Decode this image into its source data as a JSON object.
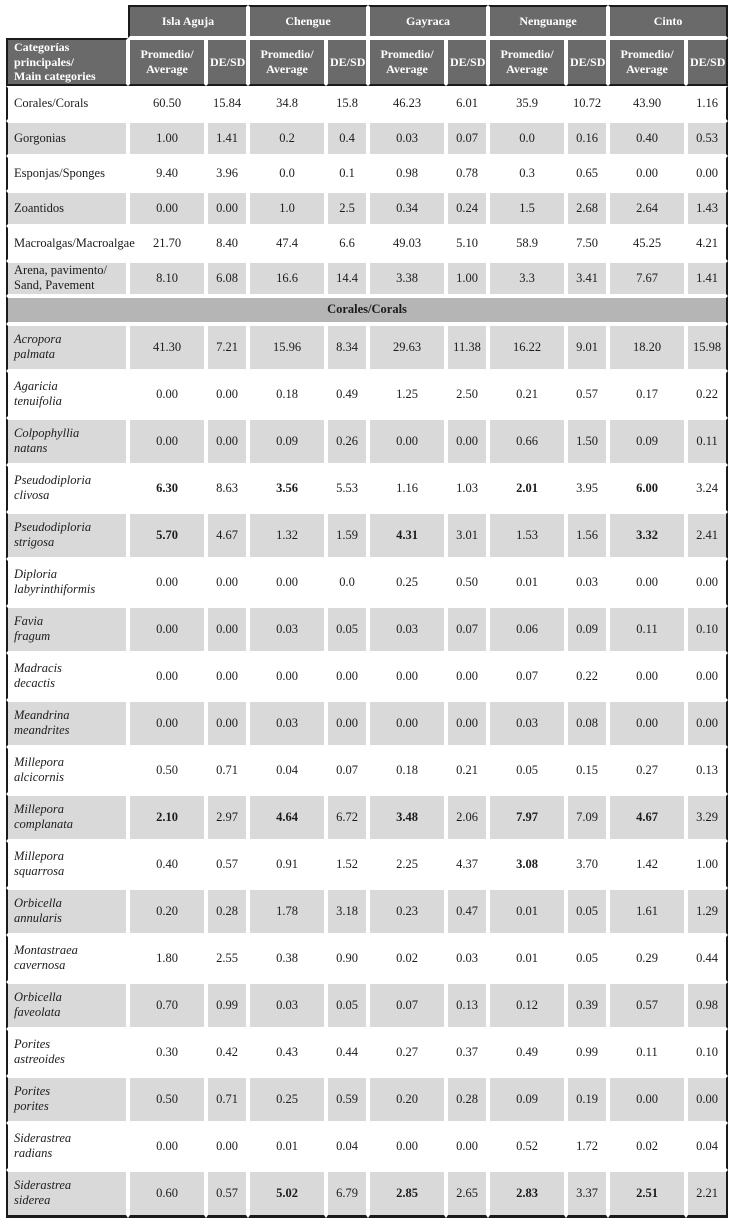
{
  "header": {
    "col1_line1": "Categorías principales/",
    "col1_line2": "Main categories",
    "avg_line1": "Promedio/",
    "avg_line2": "Average",
    "sd_label": "DE/SD",
    "locations": [
      "Isla Aguja",
      "Chengue",
      "Gayraca",
      "Nenguange",
      "Cinto"
    ]
  },
  "section_title": "Corales/Corals",
  "main_rows": [
    {
      "label_lines": [
        "Corales/Corals"
      ],
      "values": [
        "60.50",
        "15.84",
        "34.8",
        "15.8",
        "46.23",
        "6.01",
        "35.9",
        "10.72",
        "43.90",
        "1.16"
      ],
      "bold": []
    },
    {
      "label_lines": [
        "Gorgonias"
      ],
      "values": [
        "1.00",
        "1.41",
        "0.2",
        "0.4",
        "0.03",
        "0.07",
        "0.0",
        "0.16",
        "0.40",
        "0.53"
      ],
      "bold": []
    },
    {
      "label_lines": [
        "Esponjas/Sponges"
      ],
      "values": [
        "9.40",
        "3.96",
        "0.0",
        "0.1",
        "0.98",
        "0.78",
        "0.3",
        "0.65",
        "0.00",
        "0.00"
      ],
      "bold": []
    },
    {
      "label_lines": [
        "Zoantidos"
      ],
      "values": [
        "0.00",
        "0.00",
        "1.0",
        "2.5",
        "0.34",
        "0.24",
        "1.5",
        "2.68",
        "2.64",
        "1.43"
      ],
      "bold": []
    },
    {
      "label_lines": [
        "Macroalgas/Macroalgae"
      ],
      "values": [
        "21.70",
        "8.40",
        "47.4",
        "6.6",
        "49.03",
        "5.10",
        "58.9",
        "7.50",
        "45.25",
        "4.21"
      ],
      "bold": []
    },
    {
      "label_lines": [
        "Arena, pavimento/",
        "Sand, Pavement"
      ],
      "values": [
        "8.10",
        "6.08",
        "16.6",
        "14.4",
        "3.38",
        "1.00",
        "3.3",
        "3.41",
        "7.67",
        "1.41"
      ],
      "bold": []
    }
  ],
  "coral_rows": [
    {
      "label_lines": [
        "Acropora",
        "palmata"
      ],
      "values": [
        "41.30",
        "7.21",
        "15.96",
        "8.34",
        "29.63",
        "11.38",
        "16.22",
        "9.01",
        "18.20",
        "15.98"
      ],
      "bold": []
    },
    {
      "label_lines": [
        "Agaricia",
        "tenuifolia"
      ],
      "values": [
        "0.00",
        "0.00",
        "0.18",
        "0.49",
        "1.25",
        "2.50",
        "0.21",
        "0.57",
        "0.17",
        "0.22"
      ],
      "bold": []
    },
    {
      "label_lines": [
        "Colpophyllia",
        "natans"
      ],
      "values": [
        "0.00",
        "0.00",
        "0.09",
        "0.26",
        "0.00",
        "0.00",
        "0.66",
        "1.50",
        "0.09",
        "0.11"
      ],
      "bold": []
    },
    {
      "label_lines": [
        "Pseudodiploria",
        "clivosa"
      ],
      "values": [
        "6.30",
        "8.63",
        "3.56",
        "5.53",
        "1.16",
        "1.03",
        "2.01",
        "3.95",
        "6.00",
        "3.24"
      ],
      "bold": [
        0,
        2,
        6,
        8
      ]
    },
    {
      "label_lines": [
        "Pseudodiploria",
        "strigosa"
      ],
      "values": [
        "5.70",
        "4.67",
        "1.32",
        "1.59",
        "4.31",
        "3.01",
        "1.53",
        "1.56",
        "3.32",
        "2.41"
      ],
      "bold": [
        0,
        4,
        8
      ]
    },
    {
      "label_lines": [
        "Diploria",
        "labyrinthiformis"
      ],
      "values": [
        "0.00",
        "0.00",
        "0.00",
        "0.0",
        "0.25",
        "0.50",
        "0.01",
        "0.03",
        "0.00",
        "0.00"
      ],
      "bold": []
    },
    {
      "label_lines": [
        "Favia",
        "fragum"
      ],
      "values": [
        "0.00",
        "0.00",
        "0.03",
        "0.05",
        "0.03",
        "0.07",
        "0.06",
        "0.09",
        "0.11",
        "0.10"
      ],
      "bold": []
    },
    {
      "label_lines": [
        "Madracis",
        "decactis"
      ],
      "values": [
        "0.00",
        "0.00",
        "0.00",
        "0.00",
        "0.00",
        "0.00",
        "0.07",
        "0.22",
        "0.00",
        "0.00"
      ],
      "bold": []
    },
    {
      "label_lines": [
        "Meandrina",
        "meandrites"
      ],
      "values": [
        "0.00",
        "0.00",
        "0.03",
        "0.00",
        "0.00",
        "0.00",
        "0.03",
        "0.08",
        "0.00",
        "0.00"
      ],
      "bold": []
    },
    {
      "label_lines": [
        "Millepora",
        "alcicornis"
      ],
      "values": [
        "0.50",
        "0.71",
        "0.04",
        "0.07",
        "0.18",
        "0.21",
        "0.05",
        "0.15",
        "0.27",
        "0.13"
      ],
      "bold": []
    },
    {
      "label_lines": [
        "Millepora",
        "complanata"
      ],
      "values": [
        "2.10",
        "2.97",
        "4.64",
        "6.72",
        "3.48",
        "2.06",
        "7.97",
        "7.09",
        "4.67",
        "3.29"
      ],
      "bold": [
        0,
        2,
        4,
        6,
        8
      ]
    },
    {
      "label_lines": [
        "Millepora",
        "squarrosa"
      ],
      "values": [
        "0.40",
        "0.57",
        "0.91",
        "1.52",
        "2.25",
        "4.37",
        "3.08",
        "3.70",
        "1.42",
        "1.00"
      ],
      "bold": [
        6
      ]
    },
    {
      "label_lines": [
        "Orbicella",
        "annularis"
      ],
      "values": [
        "0.20",
        "0.28",
        "1.78",
        "3.18",
        "0.23",
        "0.47",
        "0.01",
        "0.05",
        "1.61",
        "1.29"
      ],
      "bold": []
    },
    {
      "label_lines": [
        "Montastraea",
        "cavernosa"
      ],
      "values": [
        "1.80",
        "2.55",
        "0.38",
        "0.90",
        "0.02",
        "0.03",
        "0.01",
        "0.05",
        "0.29",
        "0.44"
      ],
      "bold": []
    },
    {
      "label_lines": [
        "Orbicella",
        "faveolata"
      ],
      "values": [
        "0.70",
        "0.99",
        "0.03",
        "0.05",
        "0.07",
        "0.13",
        "0.12",
        "0.39",
        "0.57",
        "0.98"
      ],
      "bold": []
    },
    {
      "label_lines": [
        "Porites",
        "astreoides"
      ],
      "values": [
        "0.30",
        "0.42",
        "0.43",
        "0.44",
        "0.27",
        "0.37",
        "0.49",
        "0.99",
        "0.11",
        "0.10"
      ],
      "bold": []
    },
    {
      "label_lines": [
        "Porites",
        "porites"
      ],
      "values": [
        "0.50",
        "0.71",
        "0.25",
        "0.59",
        "0.20",
        "0.28",
        "0.09",
        "0.19",
        "0.00",
        "0.00"
      ],
      "bold": []
    },
    {
      "label_lines": [
        "Siderastrea",
        "radians"
      ],
      "values": [
        "0.00",
        "0.00",
        "0.01",
        "0.04",
        "0.00",
        "0.00",
        "0.52",
        "1.72",
        "0.02",
        "0.04"
      ],
      "bold": []
    },
    {
      "label_lines": [
        "Siderastrea",
        "siderea"
      ],
      "values": [
        "0.60",
        "0.57",
        "5.02",
        "6.79",
        "2.85",
        "2.65",
        "2.83",
        "3.37",
        "2.51",
        "2.21"
      ],
      "bold": [
        2,
        4,
        6,
        8
      ]
    }
  ],
  "colors": {
    "header_bg": "#6a6a6a",
    "section_bg": "#b5b5b5",
    "stripe_bg": "#d9d9d9",
    "border": "#1a1a1a"
  }
}
